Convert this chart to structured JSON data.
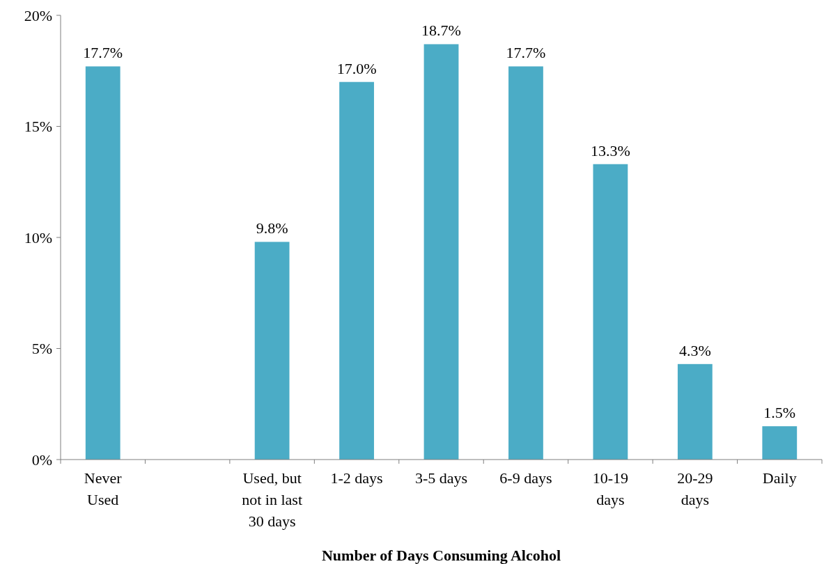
{
  "chart_data": {
    "type": "bar",
    "xlabel": "Number of Days Consuming Alcohol",
    "categories": [
      "Never Used",
      null,
      "Used, but not in last 30 days",
      "1-2 days",
      "3-5 days",
      "6-9 days",
      "10-19 days",
      "20-29 days",
      "Daily"
    ],
    "values": [
      17.7,
      null,
      9.8,
      17.0,
      18.7,
      17.7,
      13.3,
      4.3,
      1.5
    ],
    "value_labels": [
      "17.7%",
      null,
      "9.8%",
      "17.0%",
      "18.7%",
      "17.7%",
      "13.3%",
      "4.3%",
      "1.5%"
    ],
    "color": "#4bacc6",
    "ylim": [
      0,
      20
    ],
    "yticks": [
      {
        "value": 0,
        "label": "0%"
      },
      {
        "value": 5,
        "label": "5%"
      },
      {
        "value": 10,
        "label": "10%"
      },
      {
        "value": 15,
        "label": "15%"
      },
      {
        "value": 20,
        "label": "20%"
      }
    ],
    "grid": false
  }
}
